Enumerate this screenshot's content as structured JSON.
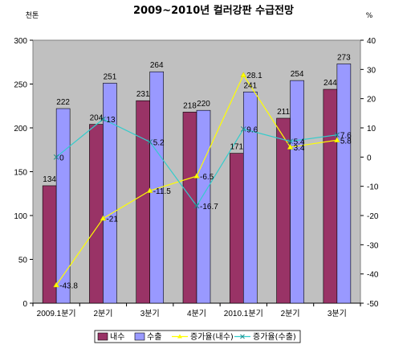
{
  "chart_data": {
    "type": "bar",
    "title": "2009~2010년 컬러강판 수급전망",
    "y_left_unit": "천톤",
    "y_right_unit": "%",
    "categories": [
      "2009.1분기",
      "2분기",
      "3분기",
      "4분기",
      "2010.1분기",
      "2분기",
      "3분기"
    ],
    "ylim_left": [
      0,
      300
    ],
    "yticks_left": [
      0,
      50,
      100,
      150,
      200,
      250,
      300
    ],
    "ylim_right": [
      -50,
      40
    ],
    "yticks_right": [
      -50,
      -40,
      -30,
      -20,
      -10,
      0,
      10,
      20,
      30,
      40
    ],
    "grid": false,
    "legend_position": "bottom",
    "series": [
      {
        "name": "내수",
        "kind": "bar",
        "axis": "left",
        "color": "#993366",
        "values": [
          134,
          204,
          231,
          218,
          171,
          211,
          244
        ],
        "labels": [
          "134",
          "204",
          "231",
          "218",
          "171",
          "211",
          "244"
        ]
      },
      {
        "name": "수출",
        "kind": "bar",
        "axis": "left",
        "color": "#9999ff",
        "values": [
          222,
          251,
          264,
          220,
          241,
          254,
          273
        ],
        "labels": [
          "222",
          "251",
          "264",
          "220",
          "241",
          "254",
          "273"
        ]
      },
      {
        "name": "증가율(내수)",
        "kind": "line",
        "axis": "right",
        "color": "#ffff00",
        "values": [
          -43.8,
          -21,
          -11.5,
          -6.5,
          28.1,
          3.4,
          5.8
        ],
        "labels": [
          "-43.8",
          "-21",
          "-11.5",
          "-6.5",
          "28.1",
          "3.4",
          "5.8"
        ]
      },
      {
        "name": "증가율(수출)",
        "kind": "line",
        "axis": "right",
        "color": "#33cccc",
        "values": [
          0,
          13,
          5.2,
          -16.7,
          9.6,
          5.4,
          7.6
        ],
        "labels": [
          "0",
          "13",
          "5.2",
          "-16.7",
          "9.6",
          "5.4",
          "7.6"
        ]
      }
    ]
  }
}
